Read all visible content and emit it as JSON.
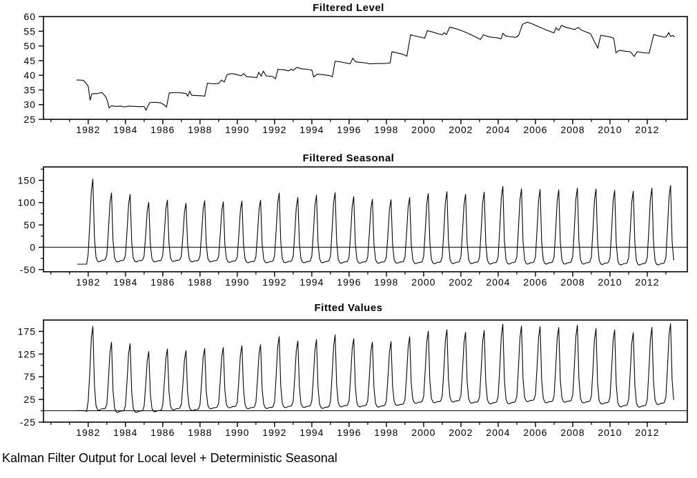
{
  "page": {
    "background": "#ffffff",
    "line_color": "#000000",
    "text_color": "#000000",
    "caption": "Kalman Filter Output for Local level + Deterministic Seasonal"
  },
  "chart_data": [
    {
      "id": "filtered-level",
      "type": "line",
      "title": "Filtered Level",
      "xlabel": "",
      "ylabel": "",
      "grid": false,
      "legend": "none",
      "zero_line": false,
      "ylim": [
        25,
        60
      ],
      "yticks": [
        25,
        30,
        35,
        40,
        45,
        50,
        55,
        60
      ],
      "yticks_minor": [],
      "xlim": [
        1979.6,
        2014.15
      ],
      "xticks_major": [
        1982,
        1984,
        1986,
        1988,
        1990,
        1992,
        1994,
        1996,
        1998,
        2000,
        2002,
        2004,
        2006,
        2008,
        2010,
        2012
      ],
      "xticks_minor": [
        1980,
        1981,
        1983,
        1985,
        1987,
        1989,
        1991,
        1993,
        1995,
        1997,
        1999,
        2001,
        2003,
        2005,
        2007,
        2009,
        2011,
        2013
      ],
      "points": [
        [
          1981.38,
          38.4
        ],
        [
          1981.75,
          38.3
        ],
        [
          1982.0,
          36.3
        ],
        [
          1982.06,
          33.5
        ],
        [
          1982.1,
          31.5
        ],
        [
          1982.2,
          33.7
        ],
        [
          1982.5,
          33.8
        ],
        [
          1982.75,
          34.1
        ],
        [
          1982.95,
          32.6
        ],
        [
          1983.05,
          30.8
        ],
        [
          1983.12,
          28.9
        ],
        [
          1983.25,
          29.6
        ],
        [
          1983.5,
          29.4
        ],
        [
          1983.75,
          29.5
        ],
        [
          1983.95,
          29.2
        ],
        [
          1984.2,
          29.5
        ],
        [
          1984.5,
          29.4
        ],
        [
          1984.8,
          29.3
        ],
        [
          1985.0,
          29.4
        ],
        [
          1985.1,
          28.1
        ],
        [
          1985.3,
          30.7
        ],
        [
          1985.6,
          30.8
        ],
        [
          1985.9,
          30.6
        ],
        [
          1986.05,
          30.0
        ],
        [
          1986.2,
          29.2
        ],
        [
          1986.35,
          34.0
        ],
        [
          1986.7,
          34.1
        ],
        [
          1987.0,
          34.0
        ],
        [
          1987.25,
          33.8
        ],
        [
          1987.35,
          32.9
        ],
        [
          1987.45,
          34.6
        ],
        [
          1987.55,
          33.2
        ],
        [
          1987.8,
          33.1
        ],
        [
          1988.1,
          33.0
        ],
        [
          1988.25,
          32.9
        ],
        [
          1988.4,
          37.3
        ],
        [
          1988.7,
          37.1
        ],
        [
          1989.0,
          37.2
        ],
        [
          1989.15,
          38.4
        ],
        [
          1989.3,
          37.7
        ],
        [
          1989.45,
          40.2
        ],
        [
          1989.7,
          40.6
        ],
        [
          1990.0,
          40.2
        ],
        [
          1990.2,
          39.8
        ],
        [
          1990.35,
          40.6
        ],
        [
          1990.5,
          39.5
        ],
        [
          1990.8,
          39.4
        ],
        [
          1991.05,
          39.2
        ],
        [
          1991.15,
          41.0
        ],
        [
          1991.28,
          39.7
        ],
        [
          1991.4,
          41.4
        ],
        [
          1991.55,
          39.8
        ],
        [
          1991.9,
          39.6
        ],
        [
          1992.05,
          38.8
        ],
        [
          1992.18,
          42.0
        ],
        [
          1992.5,
          41.9
        ],
        [
          1992.75,
          41.5
        ],
        [
          1992.9,
          42.1
        ],
        [
          1993.0,
          41.7
        ],
        [
          1993.2,
          42.7
        ],
        [
          1993.45,
          42.2
        ],
        [
          1993.8,
          42.0
        ],
        [
          1994.0,
          41.8
        ],
        [
          1994.1,
          39.4
        ],
        [
          1994.3,
          40.4
        ],
        [
          1994.6,
          40.2
        ],
        [
          1994.95,
          39.9
        ],
        [
          1995.1,
          39.5
        ],
        [
          1995.25,
          44.8
        ],
        [
          1995.6,
          44.5
        ],
        [
          1995.9,
          44.1
        ],
        [
          1996.05,
          43.9
        ],
        [
          1996.2,
          45.8
        ],
        [
          1996.35,
          44.6
        ],
        [
          1996.6,
          44.4
        ],
        [
          1996.9,
          44.2
        ],
        [
          1997.1,
          43.9
        ],
        [
          1997.4,
          44.0
        ],
        [
          1997.9,
          44.0
        ],
        [
          1998.2,
          44.2
        ],
        [
          1998.3,
          48.0
        ],
        [
          1998.6,
          47.6
        ],
        [
          1998.9,
          47.1
        ],
        [
          1999.1,
          46.5
        ],
        [
          1999.3,
          53.8
        ],
        [
          1999.6,
          53.3
        ],
        [
          1999.9,
          52.9
        ],
        [
          2000.05,
          52.6
        ],
        [
          2000.2,
          55.2
        ],
        [
          2000.5,
          54.7
        ],
        [
          2000.8,
          54.1
        ],
        [
          2001.0,
          53.8
        ],
        [
          2001.1,
          54.5
        ],
        [
          2001.22,
          53.9
        ],
        [
          2001.4,
          56.4
        ],
        [
          2001.7,
          55.9
        ],
        [
          2002.0,
          55.3
        ],
        [
          2002.3,
          54.5
        ],
        [
          2002.55,
          53.8
        ],
        [
          2002.8,
          53.0
        ],
        [
          2003.05,
          52.2
        ],
        [
          2003.2,
          53.8
        ],
        [
          2003.45,
          53.2
        ],
        [
          2003.7,
          52.9
        ],
        [
          2004.0,
          52.7
        ],
        [
          2004.15,
          52.4
        ],
        [
          2004.25,
          54.3
        ],
        [
          2004.4,
          53.4
        ],
        [
          2004.65,
          53.1
        ],
        [
          2004.95,
          52.9
        ],
        [
          2005.1,
          53.6
        ],
        [
          2005.3,
          57.3
        ],
        [
          2005.55,
          58.1
        ],
        [
          2005.8,
          57.6
        ],
        [
          2006.05,
          56.9
        ],
        [
          2006.3,
          56.2
        ],
        [
          2006.55,
          55.5
        ],
        [
          2006.8,
          54.9
        ],
        [
          2007.0,
          54.4
        ],
        [
          2007.1,
          56.2
        ],
        [
          2007.25,
          55.3
        ],
        [
          2007.4,
          57.0
        ],
        [
          2007.6,
          56.4
        ],
        [
          2007.9,
          55.9
        ],
        [
          2008.1,
          55.6
        ],
        [
          2008.3,
          56.3
        ],
        [
          2008.45,
          55.4
        ],
        [
          2008.7,
          54.8
        ],
        [
          2008.95,
          54.2
        ],
        [
          2009.15,
          51.6
        ],
        [
          2009.35,
          49.3
        ],
        [
          2009.5,
          53.6
        ],
        [
          2009.8,
          53.3
        ],
        [
          2010.05,
          53.0
        ],
        [
          2010.2,
          52.6
        ],
        [
          2010.32,
          47.7
        ],
        [
          2010.5,
          48.5
        ],
        [
          2010.8,
          48.2
        ],
        [
          2011.1,
          48.0
        ],
        [
          2011.3,
          46.4
        ],
        [
          2011.45,
          48.0
        ],
        [
          2011.8,
          47.7
        ],
        [
          2012.1,
          47.5
        ],
        [
          2012.35,
          53.9
        ],
        [
          2012.6,
          53.4
        ],
        [
          2012.85,
          53.1
        ],
        [
          2013.0,
          53.0
        ],
        [
          2013.15,
          54.5
        ],
        [
          2013.25,
          53.2
        ],
        [
          2013.38,
          53.6
        ],
        [
          2013.46,
          53.0
        ]
      ]
    },
    {
      "id": "filtered-seasonal",
      "type": "line",
      "title": "Filtered Seasonal",
      "xlabel": "",
      "ylabel": "",
      "grid": false,
      "legend": "none",
      "zero_line": true,
      "ylim": [
        -55,
        180
      ],
      "yticks": [
        -50,
        0,
        50,
        100,
        150
      ],
      "yticks_minor": [
        -25,
        25,
        75,
        125,
        175
      ],
      "xlim": [
        1979.6,
        2014.15
      ],
      "xticks_major": [
        1982,
        1984,
        1986,
        1988,
        1990,
        1992,
        1994,
        1996,
        1998,
        2000,
        2002,
        2004,
        2006,
        2008,
        2010,
        2012
      ],
      "xticks_minor": [
        1980,
        1981,
        1983,
        1985,
        1987,
        1989,
        1991,
        1993,
        1995,
        1997,
        1999,
        2001,
        2003,
        2005,
        2007,
        2009,
        2011,
        2013
      ],
      "seasonal_model": {
        "description": "monthly value = trough + shape[month] * (peak - trough); annual spike peaking in April",
        "start": 1981.38,
        "end": 2013.46,
        "month_shape": [
          0.1,
          0.45,
          0.85,
          1.0,
          0.3,
          0.06,
          0.01,
          0.0,
          0.01,
          0.02,
          0.02,
          0.03
        ],
        "years_peak_trough": [
          [
            1981,
            -38,
            -38
          ],
          [
            1982,
            153,
            -33
          ],
          [
            1983,
            122,
            -33
          ],
          [
            1984,
            119,
            -33
          ],
          [
            1985,
            101,
            -33
          ],
          [
            1986,
            106,
            -32
          ],
          [
            1987,
            99,
            -33
          ],
          [
            1988,
            105,
            -33
          ],
          [
            1989,
            102,
            -34
          ],
          [
            1990,
            104,
            -35
          ],
          [
            1991,
            106,
            -35
          ],
          [
            1992,
            122,
            -35
          ],
          [
            1993,
            112,
            -35
          ],
          [
            1994,
            117,
            -35
          ],
          [
            1995,
            123,
            -36
          ],
          [
            1996,
            114,
            -36
          ],
          [
            1997,
            108,
            -36
          ],
          [
            1998,
            107,
            -36
          ],
          [
            1999,
            112,
            -37
          ],
          [
            2000,
            121,
            -37
          ],
          [
            2001,
            125,
            -37
          ],
          [
            2002,
            119,
            -37
          ],
          [
            2003,
            124,
            -38
          ],
          [
            2004,
            137,
            -38
          ],
          [
            2005,
            131,
            -38
          ],
          [
            2006,
            130,
            -38
          ],
          [
            2007,
            129,
            -38
          ],
          [
            2008,
            133,
            -38
          ],
          [
            2009,
            131,
            -39
          ],
          [
            2010,
            128,
            -40
          ],
          [
            2011,
            126,
            -40
          ],
          [
            2012,
            133,
            -40
          ],
          [
            2013,
            139,
            -40
          ]
        ]
      }
    },
    {
      "id": "fitted-values",
      "type": "line",
      "title": "Fitted Values",
      "xlabel": "",
      "ylabel": "",
      "grid": false,
      "legend": "none",
      "zero_line": true,
      "ylim": [
        -25,
        200
      ],
      "yticks": [
        -25,
        25,
        75,
        125,
        175
      ],
      "yticks_minor": [
        0,
        50,
        100,
        150
      ],
      "xlim": [
        1979.6,
        2014.15
      ],
      "xticks_major": [
        1982,
        1984,
        1986,
        1988,
        1990,
        1992,
        1994,
        1996,
        1998,
        2000,
        2002,
        2004,
        2006,
        2008,
        2010,
        2012
      ],
      "xticks_minor": [
        1980,
        1981,
        1983,
        1985,
        1987,
        1989,
        1991,
        1993,
        1995,
        1997,
        1999,
        2001,
        2003,
        2005,
        2007,
        2009,
        2011,
        2013
      ],
      "derived": "sum",
      "note": "Fitted Values = Filtered Level + Filtered Seasonal, sampled monthly"
    }
  ]
}
